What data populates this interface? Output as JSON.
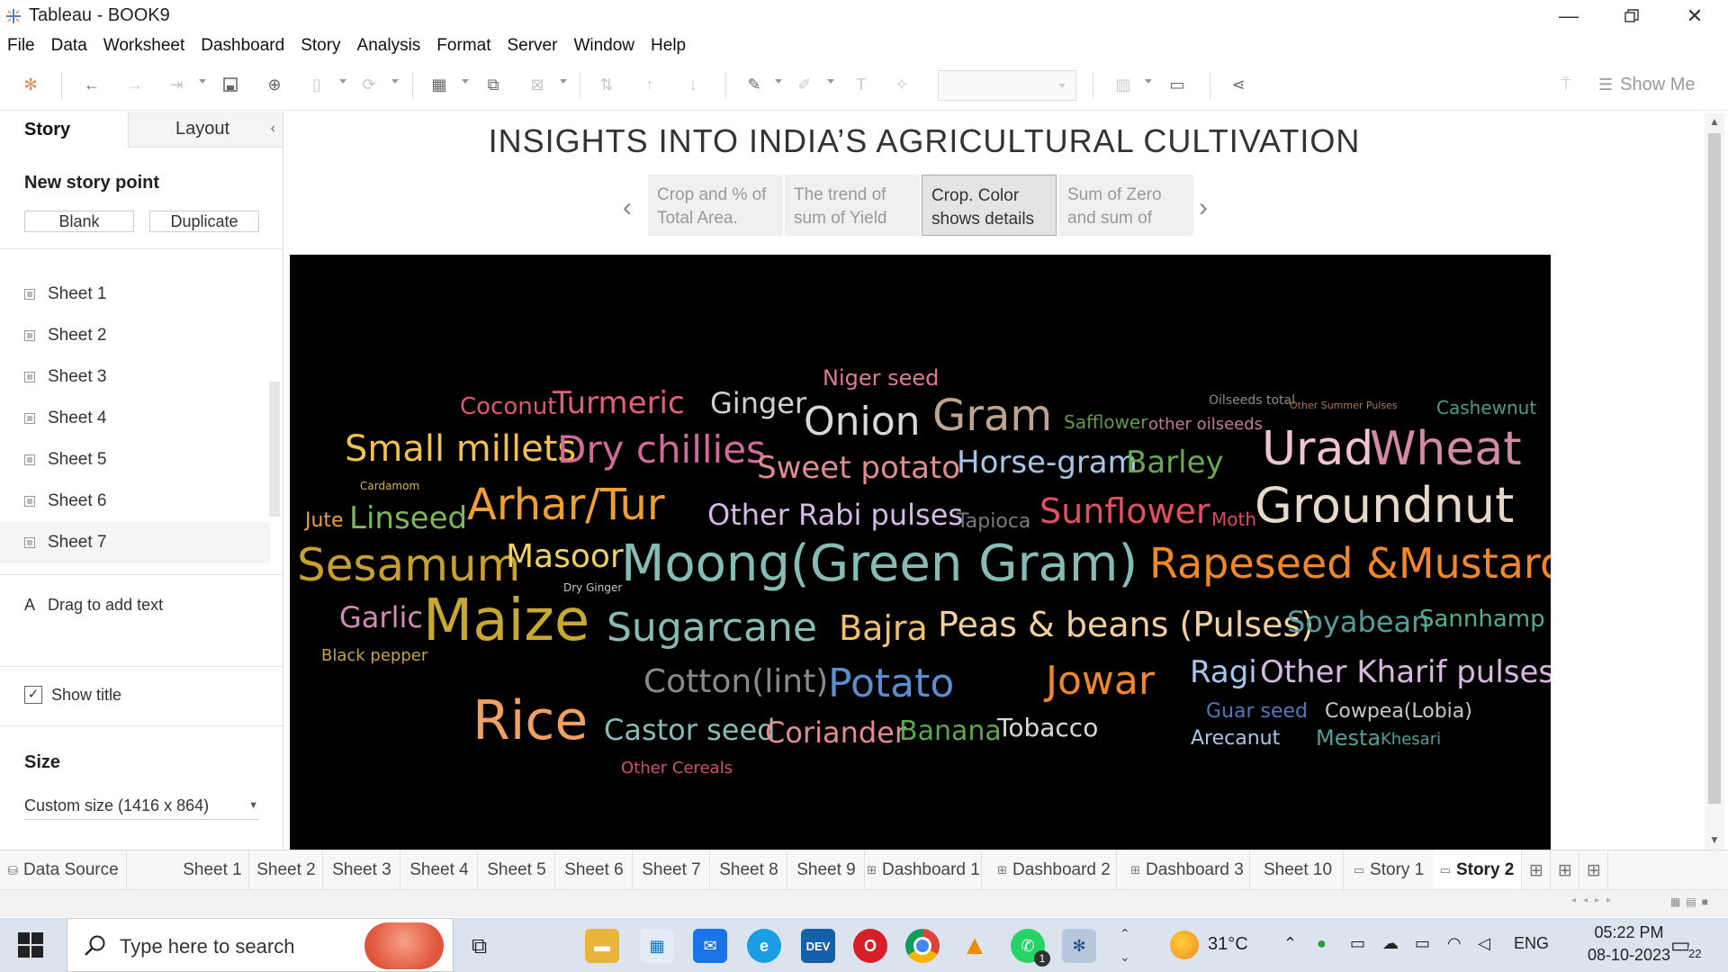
{
  "window": {
    "title": "Tableau - BOOK9"
  },
  "menu": [
    "File",
    "Data",
    "Worksheet",
    "Dashboard",
    "Story",
    "Analysis",
    "Format",
    "Server",
    "Window",
    "Help"
  ],
  "toolbar": {
    "show_me": "Show Me"
  },
  "left_pane": {
    "tabs": {
      "story": "Story",
      "layout": "Layout"
    },
    "new_story_point": "New story point",
    "blank": "Blank",
    "duplicate": "Duplicate",
    "sheets": [
      "Sheet 1",
      "Sheet 2",
      "Sheet 3",
      "Sheet 4",
      "Sheet 5",
      "Sheet 6",
      "Sheet 7"
    ],
    "drag_text_icon": "A",
    "drag_text": "Drag to add text",
    "show_title": "Show title",
    "show_title_checked": true,
    "size_heading": "Size",
    "size_value": "Custom size (1416 x 864)"
  },
  "story": {
    "title": "INSIGHTS INTO INDIA’S AGRICULTURAL CULTIVATION",
    "points": [
      {
        "text": "Crop and % of Total Area.",
        "active": false
      },
      {
        "text": "The trend of sum of Yield",
        "active": false
      },
      {
        "text": "Crop.  Color shows details",
        "active": true
      },
      {
        "text": "Sum of Zero and sum of",
        "active": false
      }
    ]
  },
  "wordcloud": {
    "background": "#000000",
    "words": [
      {
        "text": "Niger seed",
        "color": "#e07b8a"
      },
      {
        "text": "Coconut",
        "color": "#e0576c"
      },
      {
        "text": "Turmeric",
        "color": "#e0607a"
      },
      {
        "text": "Ginger",
        "color": "#d0d0d0"
      },
      {
        "text": "Onion",
        "color": "#d9d9d9"
      },
      {
        "text": "Gram",
        "color": "#bfa58f"
      },
      {
        "text": "Oilseeds total",
        "color": "#8c8c8c"
      },
      {
        "text": "Other Summer Pulses",
        "color": "#b07a4a"
      },
      {
        "text": "Cashewnut",
        "color": "#4f9a8a"
      },
      {
        "text": "Safflower",
        "color": "#5c9a4a"
      },
      {
        "text": "other oilseeds",
        "color": "#c47a9a"
      },
      {
        "text": "Small millets",
        "color": "#f0c050"
      },
      {
        "text": "Dry chillies",
        "color": "#d06a9a"
      },
      {
        "text": "Sweet potato",
        "color": "#e08c8c"
      },
      {
        "text": "Horse-gram",
        "color": "#a6c6e6"
      },
      {
        "text": "Barley",
        "color": "#6aa84f"
      },
      {
        "text": "Urad",
        "color": "#f2c4d0"
      },
      {
        "text": "Wheat",
        "color": "#d48aa6"
      },
      {
        "text": "Cardamom",
        "color": "#d9b34a"
      },
      {
        "text": "Jute",
        "color": "#e6a050"
      },
      {
        "text": "Linseed",
        "color": "#7ab85c"
      },
      {
        "text": "Arhar/Tur",
        "color": "#f0a030"
      },
      {
        "text": "Other Rabi pulses",
        "color": "#d8b8e8"
      },
      {
        "text": "Tapioca",
        "color": "#7a7a7a"
      },
      {
        "text": "Sunflower",
        "color": "#e05060"
      },
      {
        "text": "Moth",
        "color": "#d84c5c"
      },
      {
        "text": "Groundnut",
        "color": "#e8d8c8"
      },
      {
        "text": "Sesamum",
        "color": "#c8a030"
      },
      {
        "text": "Masoor",
        "color": "#f0d060"
      },
      {
        "text": "Dry Ginger",
        "color": "#c8c8c8"
      },
      {
        "text": "Moong(Green Gram)",
        "color": "#86bcb6"
      },
      {
        "text": "Rapeseed &Mustard",
        "color": "#f0882a"
      },
      {
        "text": "Garlic",
        "color": "#d48ab8"
      },
      {
        "text": "Maize",
        "color": "#c8a830"
      },
      {
        "text": "Sugarcane",
        "color": "#86bcb6"
      },
      {
        "text": "Bajra",
        "color": "#f0c070"
      },
      {
        "text": "Peas & beans (Pulses)",
        "color": "#f2d0a0"
      },
      {
        "text": "Soyabean",
        "color": "#4fa09a"
      },
      {
        "text": "Sannhamp",
        "color": "#4fb08a"
      },
      {
        "text": "Black pepper",
        "color": "#c8a040"
      },
      {
        "text": "Cotton(lint)",
        "color": "#8a8a8a"
      },
      {
        "text": "Potato",
        "color": "#5a8ed0"
      },
      {
        "text": "Jowar",
        "color": "#f0882a"
      },
      {
        "text": "Ragi",
        "color": "#a6c6ec"
      },
      {
        "text": "Other Kharif pulses",
        "color": "#d8b8e0"
      },
      {
        "text": "Rice",
        "color": "#f0a060"
      },
      {
        "text": "Castor seed",
        "color": "#86bcb6"
      },
      {
        "text": "Coriander",
        "color": "#e08c8c"
      },
      {
        "text": "Banana",
        "color": "#5ca84c"
      },
      {
        "text": "Tobacco",
        "color": "#d9d9d9"
      },
      {
        "text": "Guar seed",
        "color": "#4f7ab8"
      },
      {
        "text": "Cowpea(Lobia)",
        "color": "#c8c8c8"
      },
      {
        "text": "Arecanut",
        "color": "#a6c6ec"
      },
      {
        "text": "Mesta",
        "color": "#4fa09a"
      },
      {
        "text": "Khesari",
        "color": "#4fa09a"
      },
      {
        "text": "Other Cereals",
        "color": "#d05070"
      }
    ]
  },
  "sheet_tabs": [
    {
      "label": "Data Source",
      "icon": "database-icon"
    },
    {
      "label": "Sheet 1"
    },
    {
      "label": "Sheet 2"
    },
    {
      "label": "Sheet 3"
    },
    {
      "label": "Sheet 4"
    },
    {
      "label": "Sheet 5"
    },
    {
      "label": "Sheet 6"
    },
    {
      "label": "Sheet 7"
    },
    {
      "label": "Sheet 8"
    },
    {
      "label": "Sheet 9"
    },
    {
      "label": "Dashboard 1",
      "icon": "dashboard-icon"
    },
    {
      "label": "Dashboard 2",
      "icon": "dashboard-icon"
    },
    {
      "label": "Dashboard 3",
      "icon": "dashboard-icon"
    },
    {
      "label": "Sheet 10"
    },
    {
      "label": "Story 1",
      "icon": "story-icon"
    },
    {
      "label": "Story 2",
      "icon": "story-icon",
      "active": true
    }
  ],
  "taskbar": {
    "search_placeholder": "Type here to search",
    "weather": "31°C",
    "language": "ENG",
    "time": "05:22 PM",
    "date": "08-10-2023",
    "notifications": "22",
    "whatsapp_badge": "1",
    "dev_label": "DEV"
  }
}
